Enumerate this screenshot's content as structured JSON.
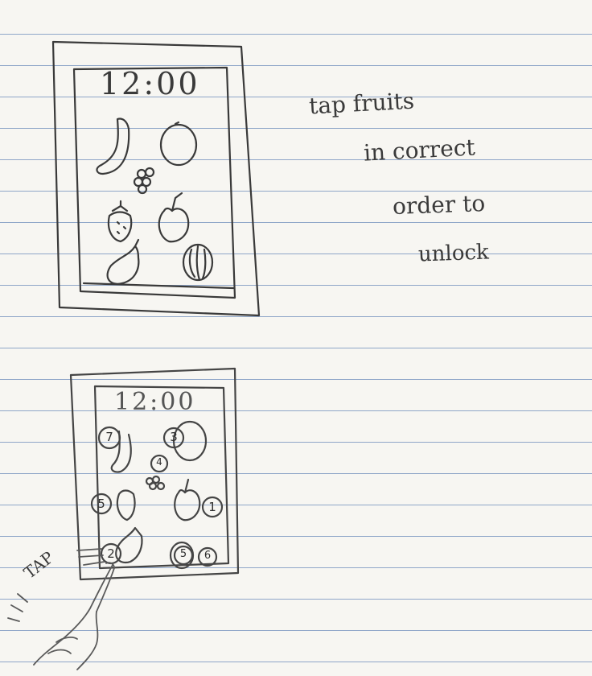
{
  "notes": {
    "line1": "tap fruits",
    "line2": "in correct",
    "line3": "order to",
    "line4": "unlock"
  },
  "screen1": {
    "clock": "12:00"
  },
  "screen2": {
    "clock": "12:00",
    "order_numbers": {
      "banana": "7",
      "orange": "3",
      "grapes": "4",
      "strawberry": "5",
      "apple": "1",
      "pear": "2",
      "melon_left": "5",
      "melon_right": "6"
    }
  },
  "tap_label": "TAP",
  "colors": {
    "paper": "#f7f6f2",
    "rule_line": "#8fa6c8",
    "pencil": "#3a3a3a"
  }
}
